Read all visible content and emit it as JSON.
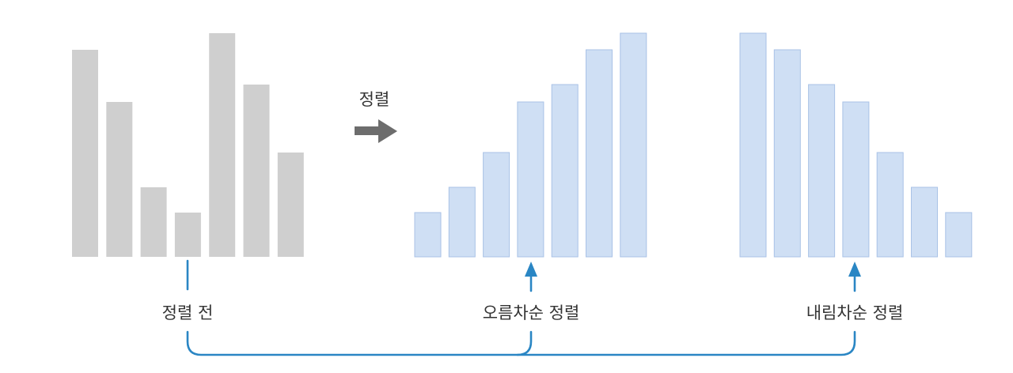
{
  "arrow_label": "정렬",
  "groups": {
    "before": {
      "label": "정렬 전",
      "values": [
        262,
        196,
        88,
        56,
        283,
        218,
        132
      ]
    },
    "ascending": {
      "label": "오름차순 정렬",
      "values": [
        56,
        88,
        132,
        196,
        218,
        262,
        283
      ]
    },
    "descending": {
      "label": "내림차순 정렬",
      "values": [
        283,
        262,
        218,
        196,
        132,
        88,
        56
      ]
    }
  },
  "colors": {
    "before_fill": "#cfcfcf",
    "sorted_fill": "#cfdff4",
    "sorted_stroke": "#a9c2e6",
    "connector": "#2a86c4",
    "arrow": "#6d6d6d",
    "text": "#333333"
  }
}
